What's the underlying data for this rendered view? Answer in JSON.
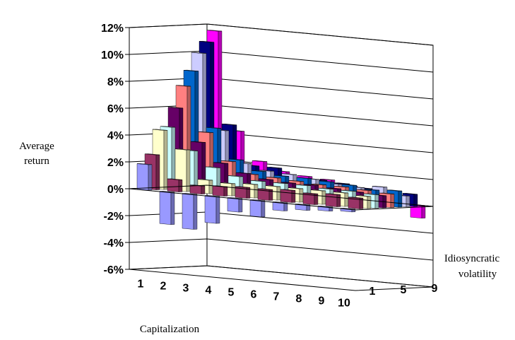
{
  "chart_data": {
    "type": "bar",
    "subtype": "3d-bar",
    "title": "",
    "ylabel": "Average return",
    "xlabel": "Capitalization",
    "zlabel": "Idiosyncratic volatility",
    "ylim": [
      -6,
      12
    ],
    "y_ticks": [
      "12%",
      "10%",
      "8%",
      "6%",
      "4%",
      "2%",
      "0%",
      "-2%",
      "-4%",
      "-6%"
    ],
    "x_ticks": [
      "1",
      "2",
      "3",
      "4",
      "5",
      "6",
      "7",
      "8",
      "9",
      "10"
    ],
    "z_ticks": [
      "1",
      "5",
      "9"
    ],
    "grid": true,
    "legend": "none",
    "categories": [
      "1",
      "2",
      "3",
      "4",
      "5",
      "6",
      "7",
      "8",
      "9",
      "10"
    ],
    "series": [
      {
        "color": "#9999FF",
        "values": [
          1.9,
          -2.4,
          -2.6,
          -2.0,
          -1.0,
          -1.2,
          -0.6,
          -0.4,
          -0.3,
          -0.2
        ]
      },
      {
        "color": "#993366",
        "values": [
          2.6,
          0.9,
          0.6,
          0.7,
          0.8,
          0.8,
          0.9,
          0.8,
          0.9,
          0.8
        ]
      },
      {
        "color": "#FFFFCC",
        "values": [
          4.4,
          3.1,
          1.0,
          0.9,
          1.0,
          1.0,
          1.0,
          1.0,
          1.0,
          0.9
        ]
      },
      {
        "color": "#CCFFFF",
        "values": [
          4.6,
          3.0,
          1.9,
          1.4,
          1.2,
          1.2,
          1.2,
          1.1,
          1.1,
          1.0
        ]
      },
      {
        "color": "#660066",
        "values": [
          6.0,
          3.6,
          2.2,
          1.6,
          1.3,
          1.2,
          1.2,
          1.1,
          1.0,
          0.9
        ]
      },
      {
        "color": "#FF8080",
        "values": [
          7.6,
          4.3,
          2.3,
          1.5,
          1.4,
          1.3,
          1.2,
          1.2,
          1.1,
          1.0
        ]
      },
      {
        "color": "#0066CC",
        "values": [
          8.7,
          4.6,
          2.4,
          1.7,
          1.5,
          1.5,
          1.4,
          1.3,
          1.1,
          1.2
        ]
      },
      {
        "color": "#CCCCFF",
        "values": [
          10.0,
          4.4,
          2.1,
          1.7,
          1.6,
          1.4,
          1.2,
          1.1,
          1.3,
          0.8
        ]
      },
      {
        "color": "#000080",
        "values": [
          10.8,
          4.8,
          1.9,
          1.9,
          1.3,
          1.3,
          1.2,
          1.0,
          1.0,
          0.9
        ]
      },
      {
        "color": "#FF00FF",
        "values": [
          11.6,
          4.3,
          2.2,
          1.6,
          1.4,
          1.3,
          1.0,
          0.8,
          0.6,
          -0.9
        ]
      }
    ]
  }
}
